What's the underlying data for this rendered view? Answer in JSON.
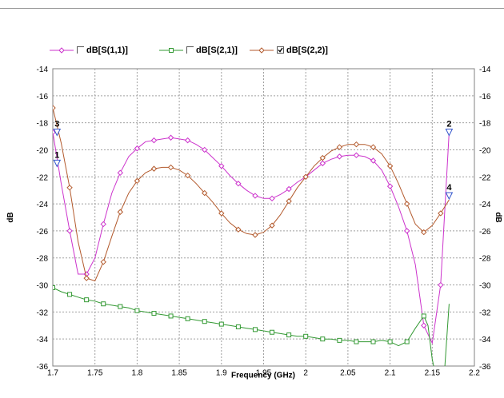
{
  "chart_data": {
    "type": "line",
    "xlabel": "Frequency (GHz)",
    "ylabel": "dB",
    "xlim": [
      1.7,
      2.2
    ],
    "ylim": [
      -36,
      -14
    ],
    "x_ticks": [
      "1.7",
      "1.75",
      "1.8",
      "1.85",
      "1.9",
      "1.95",
      "2",
      "2.05",
      "2.1",
      "2.15",
      "2.2"
    ],
    "y_ticks": [
      "-14",
      "-16",
      "-18",
      "-20",
      "-22",
      "-24",
      "-26",
      "-28",
      "-30",
      "-32",
      "-34",
      "-36"
    ],
    "grid": true,
    "legend_position": "top",
    "series": [
      {
        "name": "dB[S(1,1)]",
        "color": "#cc33cc",
        "marker": "diamond",
        "checked": false,
        "x": [
          1.7,
          1.71,
          1.72,
          1.73,
          1.74,
          1.75,
          1.76,
          1.77,
          1.78,
          1.79,
          1.8,
          1.81,
          1.82,
          1.83,
          1.84,
          1.85,
          1.86,
          1.87,
          1.88,
          1.89,
          1.9,
          1.91,
          1.92,
          1.93,
          1.94,
          1.95,
          1.96,
          1.97,
          1.98,
          1.99,
          2.0,
          2.01,
          2.02,
          2.03,
          2.04,
          2.05,
          2.06,
          2.07,
          2.08,
          2.09,
          2.1,
          2.11,
          2.12,
          2.13,
          2.14,
          2.15,
          2.16,
          2.17
        ],
        "y": [
          -18.7,
          -22.5,
          -26.0,
          -29.2,
          -29.2,
          -28.0,
          -25.5,
          -23.2,
          -21.7,
          -20.5,
          -19.9,
          -19.4,
          -19.3,
          -19.2,
          -19.1,
          -19.2,
          -19.3,
          -19.6,
          -20.0,
          -20.6,
          -21.2,
          -21.9,
          -22.5,
          -23.0,
          -23.4,
          -23.6,
          -23.6,
          -23.3,
          -22.9,
          -22.4,
          -22.0,
          -21.5,
          -21.0,
          -20.7,
          -20.5,
          -20.4,
          -20.4,
          -20.5,
          -20.8,
          -21.5,
          -22.7,
          -24.2,
          -26.0,
          -28.5,
          -33.0,
          -34.3,
          -30.0,
          -18.7
        ]
      },
      {
        "name": "dB[S(2,1)]",
        "color": "#339933",
        "marker": "square",
        "checked": false,
        "x": [
          1.7,
          1.71,
          1.72,
          1.73,
          1.74,
          1.75,
          1.76,
          1.77,
          1.78,
          1.79,
          1.8,
          1.81,
          1.82,
          1.83,
          1.84,
          1.85,
          1.86,
          1.87,
          1.88,
          1.89,
          1.9,
          1.91,
          1.92,
          1.93,
          1.94,
          1.95,
          1.96,
          1.97,
          1.98,
          1.99,
          2.0,
          2.01,
          2.02,
          2.03,
          2.04,
          2.05,
          2.06,
          2.07,
          2.08,
          2.09,
          2.1,
          2.11,
          2.12,
          2.13,
          2.14,
          2.145,
          2.15,
          2.155,
          2.16,
          2.165,
          2.17
        ],
        "y": [
          -30.2,
          -30.5,
          -30.7,
          -30.9,
          -31.1,
          -31.2,
          -31.4,
          -31.5,
          -31.6,
          -31.7,
          -31.9,
          -32.0,
          -32.1,
          -32.2,
          -32.3,
          -32.4,
          -32.5,
          -32.6,
          -32.7,
          -32.8,
          -32.9,
          -33.0,
          -33.1,
          -33.2,
          -33.3,
          -33.4,
          -33.5,
          -33.6,
          -33.7,
          -33.8,
          -33.8,
          -33.9,
          -34.0,
          -34.0,
          -34.1,
          -34.1,
          -34.2,
          -34.2,
          -34.2,
          -34.1,
          -34.2,
          -34.5,
          -34.2,
          -33.2,
          -32.3,
          -33.0,
          -35.5,
          -37.0,
          -37.0,
          -36.0,
          -31.4
        ]
      },
      {
        "name": "dB[S(2,2)]",
        "color": "#b35a2d",
        "marker": "diamond",
        "checked": true,
        "x": [
          1.7,
          1.71,
          1.72,
          1.73,
          1.74,
          1.75,
          1.76,
          1.77,
          1.78,
          1.79,
          1.8,
          1.81,
          1.82,
          1.83,
          1.84,
          1.85,
          1.86,
          1.87,
          1.88,
          1.89,
          1.9,
          1.91,
          1.92,
          1.93,
          1.94,
          1.95,
          1.96,
          1.97,
          1.98,
          1.99,
          2.0,
          2.01,
          2.02,
          2.03,
          2.04,
          2.05,
          2.06,
          2.07,
          2.08,
          2.09,
          2.1,
          2.11,
          2.12,
          2.13,
          2.14,
          2.15,
          2.16,
          2.17
        ],
        "y": [
          -16.9,
          -19.5,
          -22.8,
          -26.8,
          -29.5,
          -29.7,
          -28.3,
          -26.4,
          -24.6,
          -23.2,
          -22.3,
          -21.7,
          -21.4,
          -21.3,
          -21.3,
          -21.5,
          -21.9,
          -22.5,
          -23.2,
          -23.9,
          -24.7,
          -25.4,
          -25.9,
          -26.2,
          -26.3,
          -26.1,
          -25.6,
          -24.8,
          -23.8,
          -22.8,
          -22.0,
          -21.2,
          -20.6,
          -20.1,
          -19.8,
          -19.6,
          -19.6,
          -19.6,
          -19.8,
          -20.3,
          -21.2,
          -22.5,
          -24.0,
          -25.5,
          -26.1,
          -25.6,
          -24.7,
          -23.7
        ]
      }
    ],
    "markers": [
      {
        "label": "1",
        "x": 1.705,
        "y": -21.0
      },
      {
        "label": "3",
        "x": 1.705,
        "y": -18.7
      },
      {
        "label": "2",
        "x": 2.17,
        "y": -18.7
      },
      {
        "label": "4",
        "x": 2.17,
        "y": -23.4
      }
    ]
  }
}
